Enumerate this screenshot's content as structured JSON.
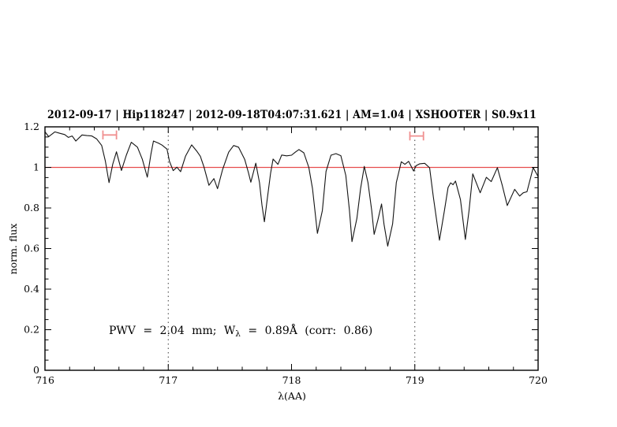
{
  "figure": {
    "background": "#ffffff",
    "title": "2012-09-17 | Hip118247 | 2012-09-18T04:07:31.621 | AM=1.04 | XSHOOTER | S0.9x11",
    "title_color": "#2222dd",
    "annotation": {
      "pre": "PWV = 2.04 mm; W",
      "sub": "λ",
      "post": " = 0.89Å (corr: 0.86)",
      "color": "#2222dd"
    }
  },
  "chart_data": {
    "type": "line",
    "title": "2012-09-17 | Hip118247 | 2012-09-18T04:07:31.621 | AM=1.04 | XSHOOTER | S0.9x11",
    "xlabel": "λ(AA)",
    "ylabel": "norm. flux",
    "xlim": [
      716,
      720
    ],
    "ylim": [
      0,
      1.2
    ],
    "grid": false,
    "legend": false,
    "x_major_ticks": [
      716,
      717,
      718,
      719,
      720
    ],
    "x_tick_labels": [
      "716",
      "717",
      "718",
      "719",
      "720"
    ],
    "x_minor_tick_step": 0.2,
    "y_major_ticks": [
      0,
      0.2,
      0.4,
      0.6,
      0.8,
      1,
      1.2
    ],
    "y_tick_labels": [
      "0",
      "0.2",
      "0.4",
      "0.6",
      "0.8",
      "1",
      "1.2"
    ],
    "y_minor_tick_step": 0.05,
    "continuum_line": {
      "y": 1.0,
      "color": "#e64c4c"
    },
    "reference_vlines": {
      "x": [
        717,
        719
      ],
      "style": "dotted",
      "color": "#3a3a3a"
    },
    "window_markers": [
      {
        "x1": 716.47,
        "x2": 716.58,
        "y": 1.16,
        "cap_halfheight": 0.022,
        "color": "#f09090"
      },
      {
        "x1": 718.96,
        "x2": 719.07,
        "y": 1.155,
        "cap_halfheight": 0.022,
        "color": "#f09090"
      }
    ],
    "annotation": {
      "text": "PWV = 2.04 mm; W_λ = 0.89Å (corr: 0.86)",
      "x": 716.52,
      "y": 0.2,
      "color": "#2222dd"
    },
    "series": [
      {
        "name": "normalized telluric spectrum",
        "color": "#141414",
        "x": [
          716.0,
          716.03,
          716.08,
          716.12,
          716.16,
          716.19,
          716.22,
          716.25,
          716.3,
          716.34,
          716.38,
          716.42,
          716.46,
          716.49,
          716.52,
          716.55,
          716.58,
          716.6,
          716.62,
          716.66,
          716.7,
          716.75,
          716.79,
          716.83,
          716.86,
          716.88,
          716.92,
          716.95,
          716.99,
          717.01,
          717.04,
          717.07,
          717.1,
          717.14,
          717.19,
          717.23,
          717.26,
          717.29,
          717.33,
          717.37,
          717.4,
          717.44,
          717.49,
          717.53,
          717.57,
          717.62,
          717.65,
          717.67,
          717.71,
          717.74,
          717.76,
          717.78,
          717.8,
          717.83,
          717.85,
          717.89,
          717.92,
          717.96,
          718.0,
          718.03,
          718.06,
          718.1,
          718.14,
          718.17,
          718.21,
          718.25,
          718.28,
          718.32,
          718.36,
          718.4,
          718.44,
          718.47,
          718.49,
          718.53,
          718.56,
          718.59,
          718.62,
          718.65,
          718.67,
          718.7,
          718.73,
          718.75,
          718.78,
          718.82,
          718.85,
          718.89,
          718.92,
          718.95,
          718.99,
          719.01,
          719.04,
          719.08,
          719.12,
          719.15,
          719.2,
          719.24,
          719.27,
          719.29,
          719.31,
          719.33,
          719.37,
          719.41,
          719.44,
          719.47,
          719.53,
          719.58,
          719.62,
          719.67,
          719.71,
          719.75,
          719.81,
          719.85,
          719.88,
          719.91,
          719.96,
          720.0
        ],
        "y": [
          1.175,
          1.152,
          1.175,
          1.168,
          1.162,
          1.148,
          1.155,
          1.13,
          1.16,
          1.157,
          1.155,
          1.14,
          1.108,
          1.03,
          0.925,
          1.016,
          1.077,
          1.03,
          0.985,
          1.06,
          1.124,
          1.1,
          1.04,
          0.952,
          1.068,
          1.13,
          1.12,
          1.11,
          1.09,
          1.03,
          0.984,
          1.001,
          0.979,
          1.055,
          1.111,
          1.081,
          1.055,
          1.001,
          0.912,
          0.945,
          0.895,
          0.988,
          1.075,
          1.108,
          1.1,
          1.04,
          0.975,
          0.927,
          1.021,
          0.925,
          0.815,
          0.732,
          0.828,
          0.97,
          1.041,
          1.015,
          1.061,
          1.057,
          1.06,
          1.075,
          1.088,
          1.072,
          1.0,
          0.895,
          0.675,
          0.788,
          0.98,
          1.06,
          1.068,
          1.058,
          0.96,
          0.788,
          0.634,
          0.748,
          0.895,
          1.005,
          0.925,
          0.788,
          0.67,
          0.74,
          0.82,
          0.72,
          0.612,
          0.721,
          0.925,
          1.028,
          1.015,
          1.03,
          0.982,
          1.008,
          1.018,
          1.02,
          0.998,
          0.855,
          0.641,
          0.788,
          0.901,
          0.924,
          0.915,
          0.933,
          0.841,
          0.645,
          0.788,
          0.968,
          0.875,
          0.951,
          0.93,
          0.999,
          0.91,
          0.812,
          0.892,
          0.859,
          0.875,
          0.88,
          0.999,
          0.955
        ]
      }
    ]
  }
}
